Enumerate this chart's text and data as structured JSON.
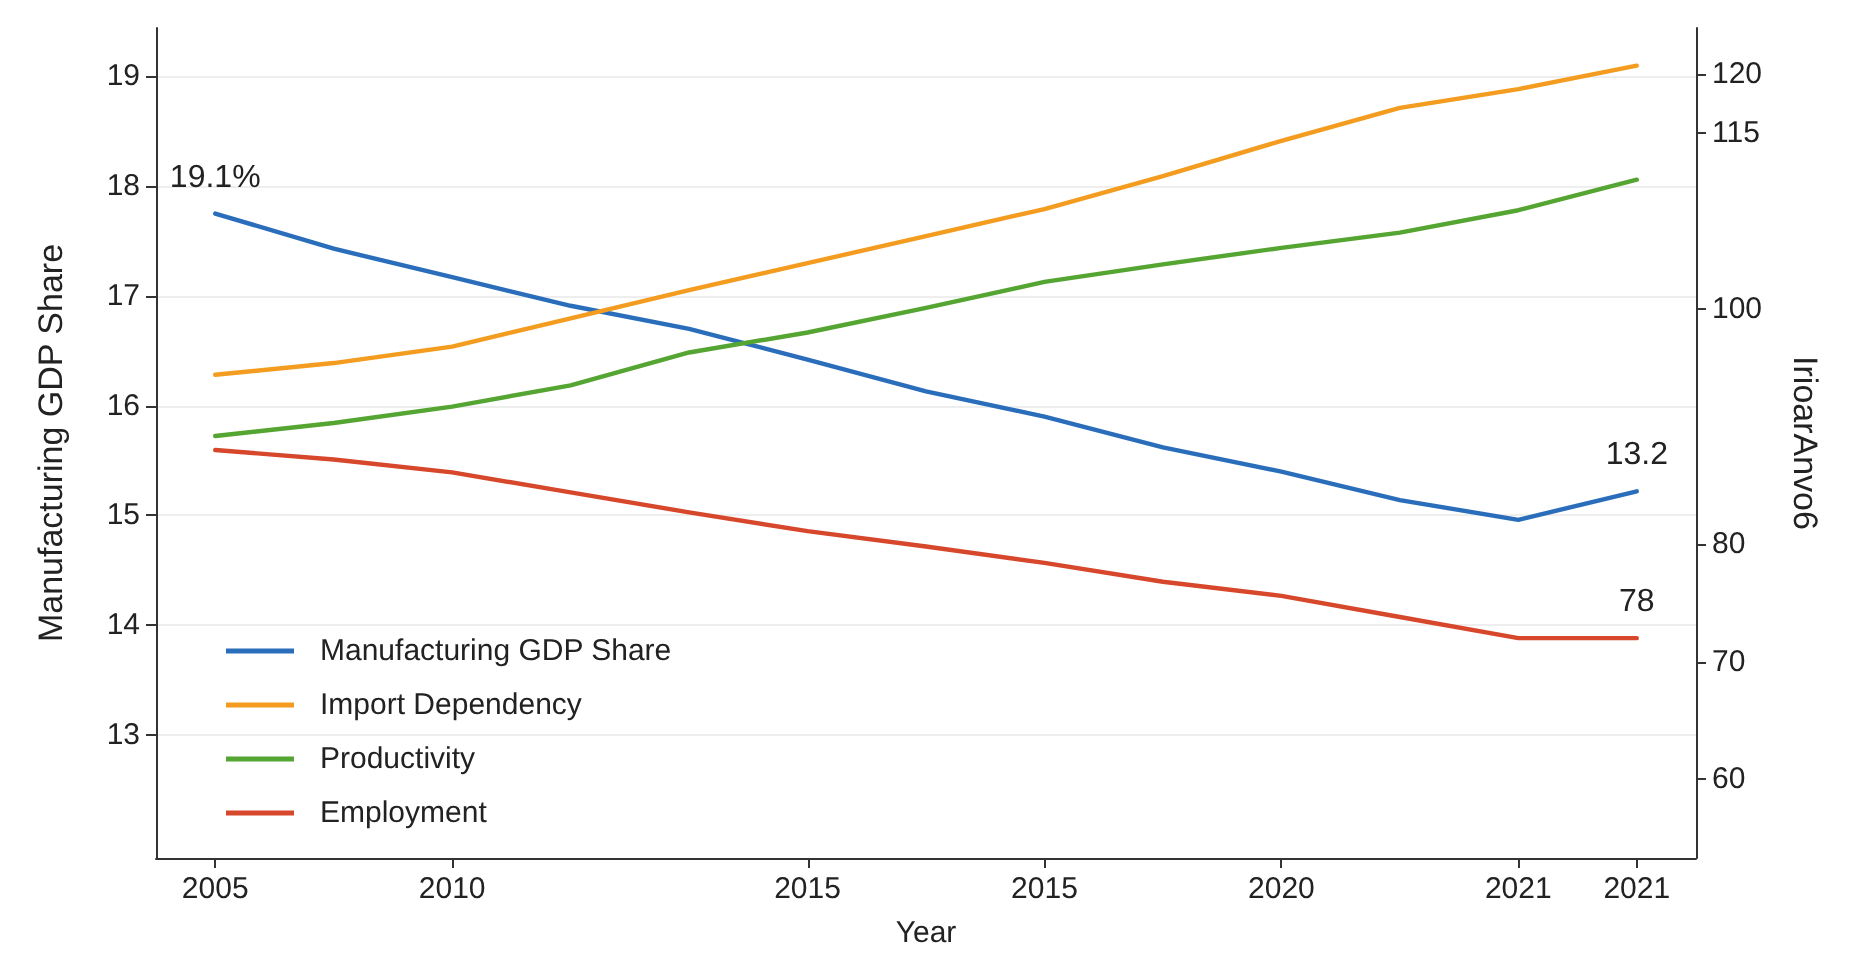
{
  "chart_data": {
    "type": "line",
    "xlabel": "Year",
    "ylabel": "Manufacturing GDP Share",
    "y2label": "IrioarAnvo6",
    "categories": [
      "2005",
      null,
      "2010",
      null,
      null,
      "2015",
      null,
      "2015",
      null,
      "2020",
      null,
      "2021",
      "2021"
    ],
    "ylim": [
      11.88,
      19.44
    ],
    "yticks": [
      13,
      14,
      15,
      16,
      17,
      18,
      19
    ],
    "y2lim": [
      53.3,
      123.9
    ],
    "y2ticks": [
      60,
      70,
      80,
      100,
      115,
      120
    ],
    "series": [
      {
        "name": "Manufacturing GDP Share",
        "color": "#2a6ebb",
        "values": [
          17.75,
          17.43,
          17.17,
          16.91,
          16.7,
          16.42,
          16.13,
          15.9,
          15.62,
          15.4,
          15.14,
          14.96,
          15.22
        ]
      },
      {
        "name": "Import Dependency",
        "color": "#f39c1f",
        "axis": "y2",
        "values": [
          94.4,
          95.4,
          96.8,
          99.2,
          101.6,
          103.9,
          106.2,
          108.5,
          111.3,
          114.3,
          117.1,
          118.7,
          120.7
        ]
      },
      {
        "name": "Productivity",
        "color": "#55a532",
        "axis": "y2",
        "values": [
          89.2,
          90.3,
          91.7,
          93.5,
          96.3,
          98.0,
          100.1,
          102.3,
          103.8,
          105.2,
          106.5,
          108.4,
          111.0
        ]
      },
      {
        "name": "Employment",
        "color": "#d6472b",
        "axis": "y2",
        "values": [
          88.0,
          87.2,
          86.1,
          84.4,
          82.7,
          81.1,
          79.8,
          78.4,
          76.8,
          75.6,
          73.8,
          72.0,
          72.0
        ]
      }
    ],
    "annotations": [
      {
        "text": "19.1%",
        "x": "2005",
        "y": 17.75
      },
      {
        "text": "13.2",
        "y": 15.22
      },
      {
        "text": "78",
        "y": 13.88
      }
    ],
    "legend": "bottom left",
    "grid": "y",
    "marker": "none",
    "line_style": "solid"
  }
}
